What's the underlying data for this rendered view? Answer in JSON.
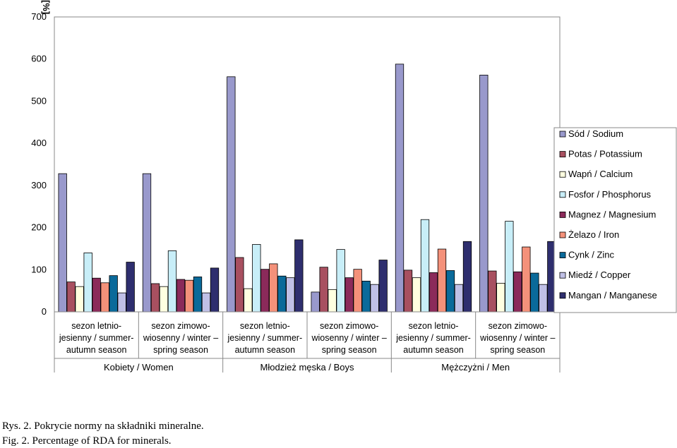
{
  "chart_data": {
    "type": "bar",
    "ylabel": "[%]",
    "ylim": [
      0,
      700
    ],
    "yticks": [
      0,
      100,
      200,
      300,
      400,
      500,
      600,
      700
    ],
    "categories": [
      [
        "sezon letnio-",
        "jesienny / summer-",
        "autumn season"
      ],
      [
        "sezon zimowo-",
        "wiosenny / winter –",
        "spring season"
      ],
      [
        "sezon letnio-",
        "jesienny / summer-",
        "autumn season"
      ],
      [
        "sezon zimowo-",
        "wiosenny / winter –",
        "spring season"
      ],
      [
        "sezon letnio-",
        "jesienny / summer-",
        "autumn season"
      ],
      [
        "sezon zimowo-",
        "wiosenny / winter –",
        "spring season"
      ]
    ],
    "groups": [
      "Kobiety / Women",
      "Młodzież męska / Boys",
      "Mężczyżni / Men"
    ],
    "series": [
      {
        "name": "Sód / Sodium",
        "color": "#9999cc",
        "values": [
          328,
          328,
          558,
          47,
          588,
          562
        ]
      },
      {
        "name": "Potas / Potassium",
        "color": "#a85060",
        "values": [
          71,
          67,
          129,
          106,
          99,
          97
        ]
      },
      {
        "name": "Wapń / Calcium",
        "color": "#ffffe0",
        "values": [
          60,
          60,
          55,
          53,
          81,
          68
        ]
      },
      {
        "name": "Fosfor / Phosphorus",
        "color": "#c8eef8",
        "values": [
          140,
          145,
          160,
          148,
          219,
          215
        ]
      },
      {
        "name": "Magnez / Magnesium",
        "color": "#8b2a5a",
        "values": [
          80,
          77,
          101,
          81,
          93,
          95
        ]
      },
      {
        "name": "Żelazo / Iron",
        "color": "#f4917a",
        "values": [
          69,
          75,
          114,
          101,
          149,
          154
        ]
      },
      {
        "name": "Cynk / Zinc",
        "color": "#0a6a9a",
        "values": [
          86,
          83,
          85,
          73,
          98,
          92
        ]
      },
      {
        "name": "Miedź / Copper",
        "color": "#c0c0e6",
        "values": [
          45,
          45,
          81,
          65,
          65,
          65
        ]
      },
      {
        "name": "Mangan / Manganese",
        "color": "#2e2e6e",
        "values": [
          118,
          104,
          171,
          123,
          167,
          167
        ]
      }
    ]
  },
  "caption": {
    "line1": "Rys. 2. Pokrycie normy na składniki mineralne.",
    "line2": "Fig. 2. Percentage of RDA for minerals."
  }
}
